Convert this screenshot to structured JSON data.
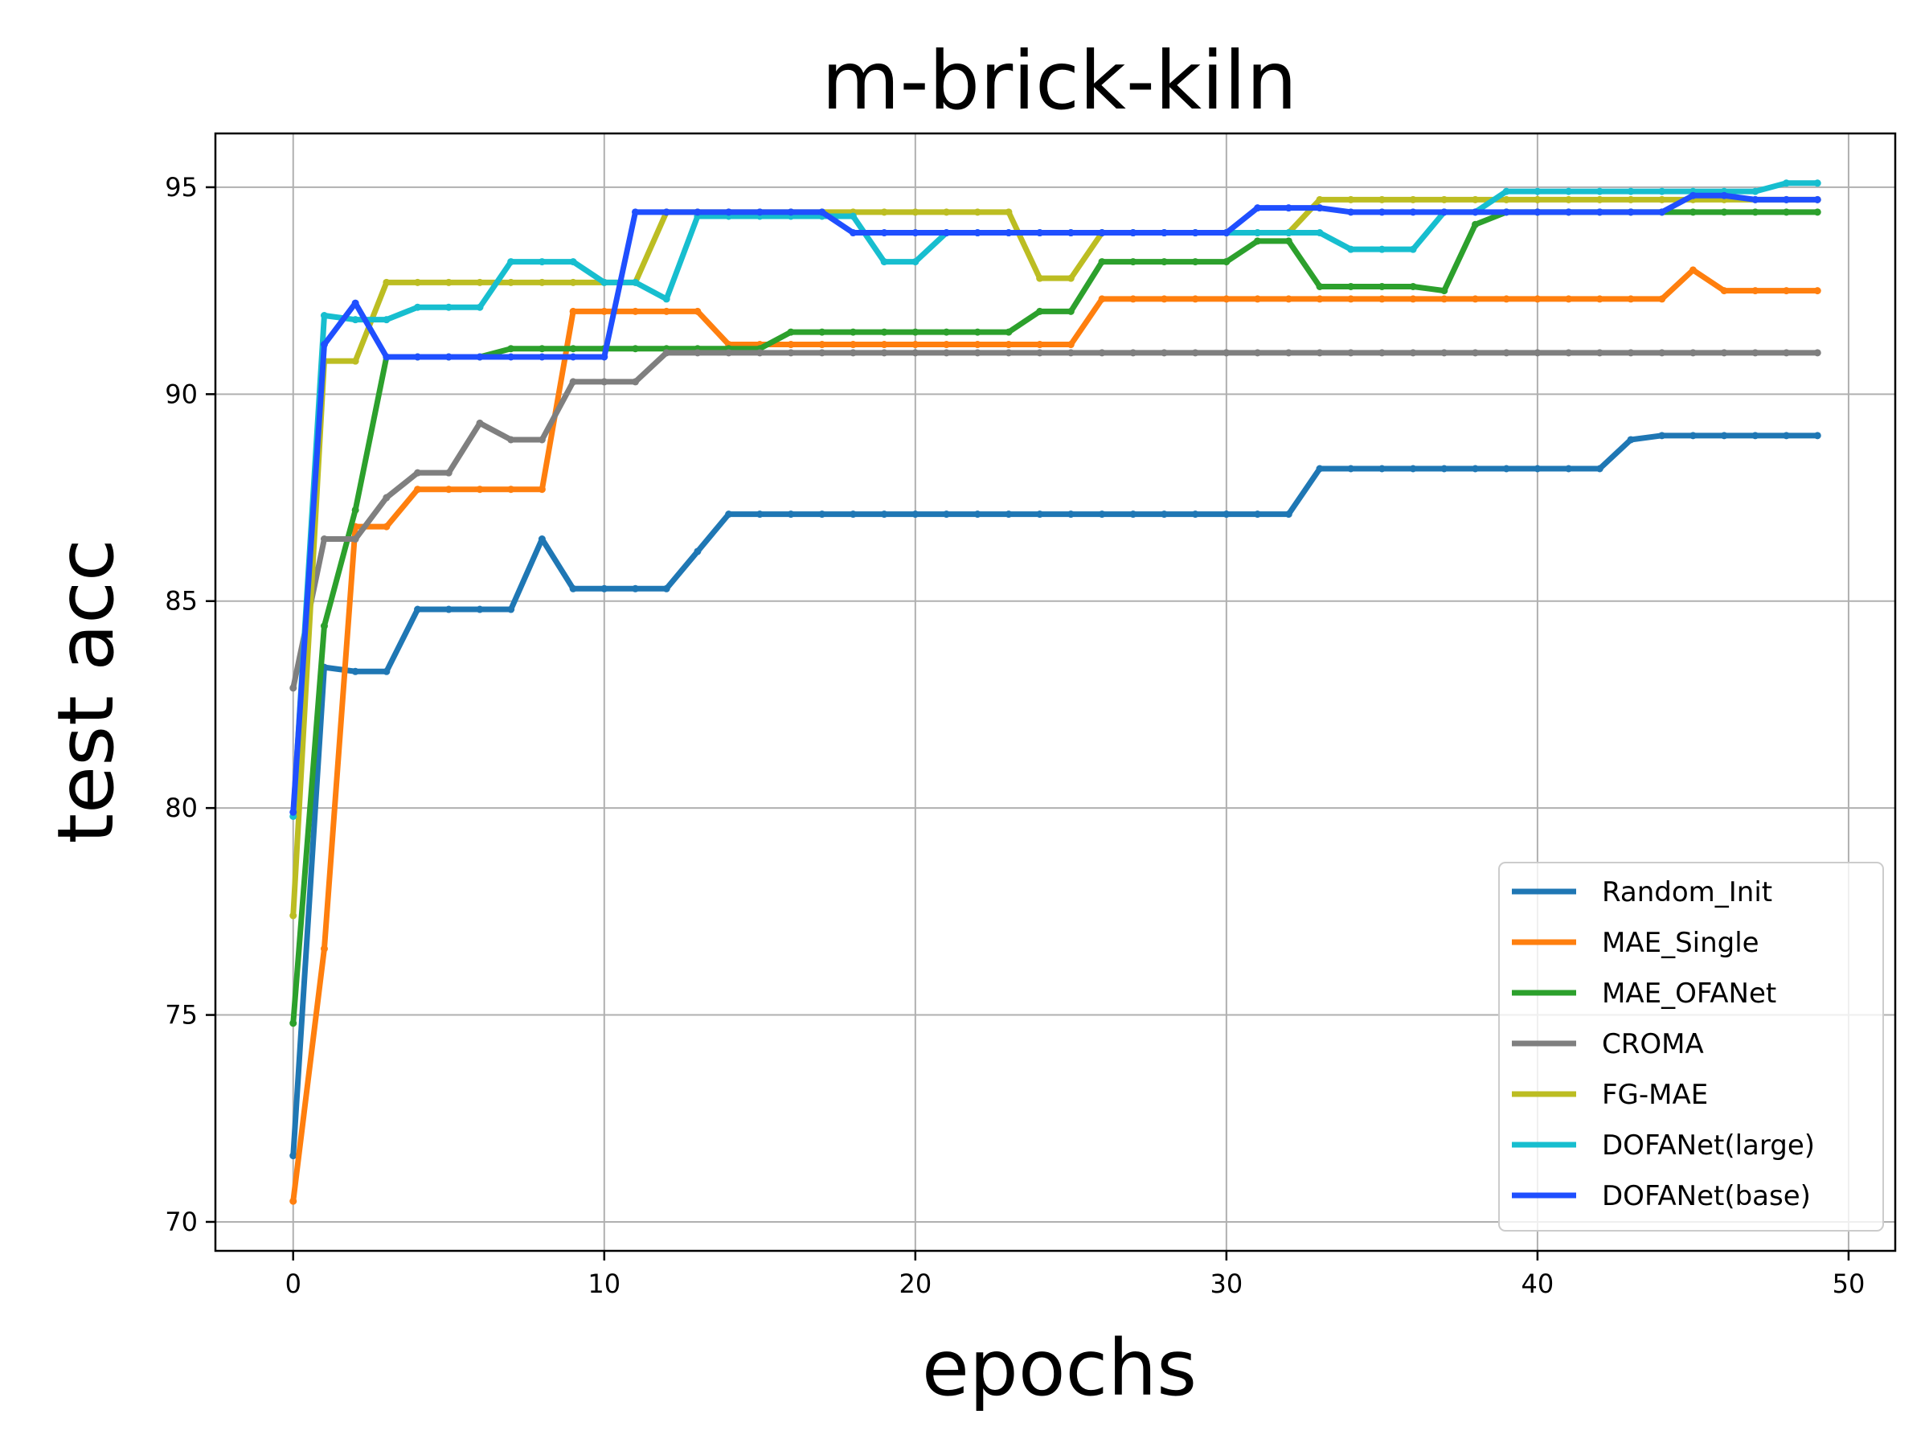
{
  "chart_data": {
    "type": "line",
    "title": "m-brick-kiln",
    "xlabel": "epochs",
    "ylabel": "test acc",
    "xlim": [
      -2.5,
      51.5
    ],
    "ylim": [
      69.3,
      96.3
    ],
    "xticks": [
      0,
      10,
      20,
      30,
      40,
      50
    ],
    "yticks": [
      70,
      75,
      80,
      85,
      90,
      95
    ],
    "grid": true,
    "legend_position": "lower right",
    "x": [
      0,
      1,
      2,
      3,
      4,
      5,
      6,
      7,
      8,
      9,
      10,
      11,
      12,
      13,
      14,
      15,
      16,
      17,
      18,
      19,
      20,
      21,
      22,
      23,
      24,
      25,
      26,
      27,
      28,
      29,
      30,
      31,
      32,
      33,
      34,
      35,
      36,
      37,
      38,
      39,
      40,
      41,
      42,
      43,
      44,
      45,
      46,
      47,
      48,
      49
    ],
    "series": [
      {
        "name": "Random_Init",
        "color": "#1f77b4",
        "values": [
          71.6,
          83.4,
          83.3,
          83.3,
          84.8,
          84.8,
          84.8,
          84.8,
          86.5,
          85.3,
          85.3,
          85.3,
          85.3,
          86.2,
          87.1,
          87.1,
          87.1,
          87.1,
          87.1,
          87.1,
          87.1,
          87.1,
          87.1,
          87.1,
          87.1,
          87.1,
          87.1,
          87.1,
          87.1,
          87.1,
          87.1,
          87.1,
          87.1,
          88.2,
          88.2,
          88.2,
          88.2,
          88.2,
          88.2,
          88.2,
          88.2,
          88.2,
          88.2,
          88.9,
          89.0,
          89.0,
          89.0,
          89.0,
          89.0,
          89.0
        ]
      },
      {
        "name": "MAE_Single",
        "color": "#ff7f0e",
        "values": [
          70.5,
          76.6,
          86.8,
          86.8,
          87.7,
          87.7,
          87.7,
          87.7,
          87.7,
          92.0,
          92.0,
          92.0,
          92.0,
          92.0,
          91.2,
          91.2,
          91.2,
          91.2,
          91.2,
          91.2,
          91.2,
          91.2,
          91.2,
          91.2,
          91.2,
          91.2,
          92.3,
          92.3,
          92.3,
          92.3,
          92.3,
          92.3,
          92.3,
          92.3,
          92.3,
          92.3,
          92.3,
          92.3,
          92.3,
          92.3,
          92.3,
          92.3,
          92.3,
          92.3,
          92.3,
          93.0,
          92.5,
          92.5,
          92.5,
          92.5
        ]
      },
      {
        "name": "MAE_OFANet",
        "color": "#2ca02c",
        "values": [
          74.8,
          84.4,
          87.2,
          90.9,
          90.9,
          90.9,
          90.9,
          91.1,
          91.1,
          91.1,
          91.1,
          91.1,
          91.1,
          91.1,
          91.1,
          91.1,
          91.5,
          91.5,
          91.5,
          91.5,
          91.5,
          91.5,
          91.5,
          91.5,
          92.0,
          92.0,
          93.2,
          93.2,
          93.2,
          93.2,
          93.2,
          93.7,
          93.7,
          92.6,
          92.6,
          92.6,
          92.6,
          92.5,
          94.1,
          94.4,
          94.4,
          94.4,
          94.4,
          94.4,
          94.4,
          94.4,
          94.4,
          94.4,
          94.4,
          94.4
        ]
      },
      {
        "name": "CROMA",
        "color": "#7f7f7f",
        "values": [
          82.9,
          86.5,
          86.5,
          87.5,
          88.1,
          88.1,
          89.3,
          88.9,
          88.9,
          90.3,
          90.3,
          90.3,
          91.0,
          91.0,
          91.0,
          91.0,
          91.0,
          91.0,
          91.0,
          91.0,
          91.0,
          91.0,
          91.0,
          91.0,
          91.0,
          91.0,
          91.0,
          91.0,
          91.0,
          91.0,
          91.0,
          91.0,
          91.0,
          91.0,
          91.0,
          91.0,
          91.0,
          91.0,
          91.0,
          91.0,
          91.0,
          91.0,
          91.0,
          91.0,
          91.0,
          91.0,
          91.0,
          91.0,
          91.0,
          91.0
        ]
      },
      {
        "name": "FG-MAE",
        "color": "#bcbd22",
        "values": [
          77.4,
          90.8,
          90.8,
          92.7,
          92.7,
          92.7,
          92.7,
          92.7,
          92.7,
          92.7,
          92.7,
          92.7,
          94.4,
          94.4,
          94.4,
          94.4,
          94.4,
          94.4,
          94.4,
          94.4,
          94.4,
          94.4,
          94.4,
          94.4,
          92.8,
          92.8,
          93.9,
          93.9,
          93.9,
          93.9,
          93.9,
          93.9,
          93.9,
          94.7,
          94.7,
          94.7,
          94.7,
          94.7,
          94.7,
          94.7,
          94.7,
          94.7,
          94.7,
          94.7,
          94.7,
          94.7,
          94.7,
          94.7,
          94.7,
          94.7
        ]
      },
      {
        "name": "DOFANet(large)",
        "color": "#17becf",
        "values": [
          79.8,
          91.9,
          91.8,
          91.8,
          92.1,
          92.1,
          92.1,
          93.2,
          93.2,
          93.2,
          92.7,
          92.7,
          92.3,
          94.3,
          94.3,
          94.3,
          94.3,
          94.3,
          94.3,
          93.2,
          93.2,
          93.9,
          93.9,
          93.9,
          93.9,
          93.9,
          93.9,
          93.9,
          93.9,
          93.9,
          93.9,
          93.9,
          93.9,
          93.9,
          93.5,
          93.5,
          93.5,
          94.4,
          94.4,
          94.9,
          94.9,
          94.9,
          94.9,
          94.9,
          94.9,
          94.9,
          94.9,
          94.9,
          95.1,
          95.1
        ]
      },
      {
        "name": "DOFANet(base)",
        "color": "#1f4fff",
        "values": [
          79.9,
          91.2,
          92.2,
          90.9,
          90.9,
          90.9,
          90.9,
          90.9,
          90.9,
          90.9,
          90.9,
          94.4,
          94.4,
          94.4,
          94.4,
          94.4,
          94.4,
          94.4,
          93.9,
          93.9,
          93.9,
          93.9,
          93.9,
          93.9,
          93.9,
          93.9,
          93.9,
          93.9,
          93.9,
          93.9,
          93.9,
          94.5,
          94.5,
          94.5,
          94.4,
          94.4,
          94.4,
          94.4,
          94.4,
          94.4,
          94.4,
          94.4,
          94.4,
          94.4,
          94.4,
          94.8,
          94.8,
          94.7,
          94.7,
          94.7
        ]
      }
    ]
  }
}
